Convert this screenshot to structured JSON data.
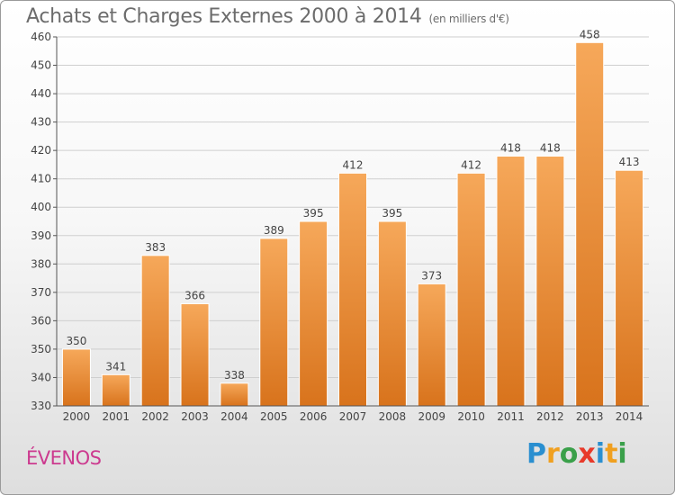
{
  "title": "Achats et Charges Externes 2000 à 2014",
  "subtitle": "(en milliers d'€)",
  "commune": "ÉVENOS",
  "logo": {
    "text": "Proxiti",
    "letters": [
      "P",
      "r",
      "o",
      "x",
      "i",
      "t",
      "i"
    ],
    "colors": [
      "#2a8fd0",
      "#f0a020",
      "#3aa04a",
      "#e83a2a",
      "#2a8fd0",
      "#f0a020",
      "#3aa04a"
    ]
  },
  "colors": {
    "bar_top": "#f6a85a",
    "bar_bottom": "#d8731c",
    "grid": "#cfcfcf",
    "commune": "#cc3a8f"
  },
  "chart_data": {
    "type": "bar",
    "categories": [
      "2000",
      "2001",
      "2002",
      "2003",
      "2004",
      "2005",
      "2006",
      "2007",
      "2008",
      "2009",
      "2010",
      "2011",
      "2012",
      "2013",
      "2014"
    ],
    "values": [
      350,
      341,
      383,
      366,
      338,
      389,
      395,
      412,
      395,
      373,
      412,
      418,
      418,
      458,
      413
    ],
    "title": "Achats et Charges Externes 2000 à 2014",
    "subtitle": "(en milliers d'€)",
    "xlabel": "",
    "ylabel": "",
    "ylim": [
      330,
      460
    ],
    "yticks": [
      330,
      340,
      350,
      360,
      370,
      380,
      390,
      400,
      410,
      420,
      430,
      440,
      450,
      460
    ],
    "grid": true,
    "legend": "none"
  }
}
